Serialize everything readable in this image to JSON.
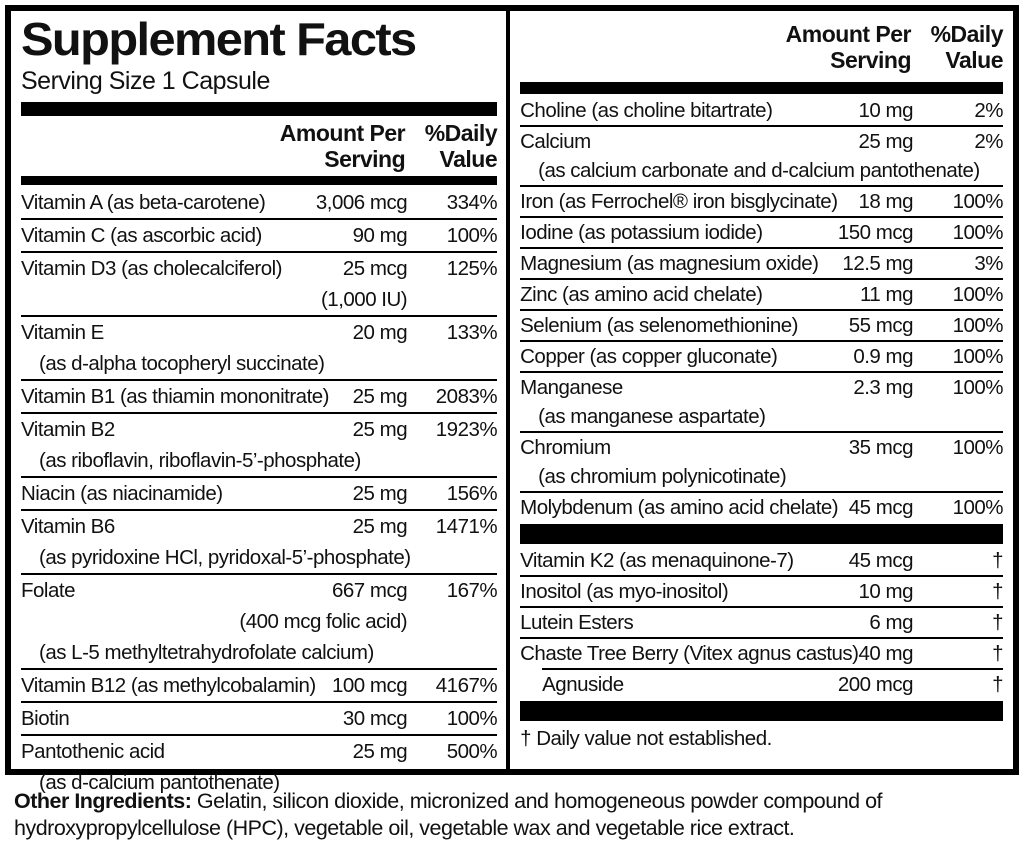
{
  "panel": {
    "title": "Supplement Facts",
    "serving_size": "Serving Size 1 Capsule",
    "column_headers": {
      "amount_line1": "Amount Per",
      "amount_line2": "Serving",
      "dv_line1": "%Daily",
      "dv_line2": "Value"
    },
    "left_rows": [
      {
        "name": "Vitamin A (as beta-carotene)",
        "amount": "3,006 mcg",
        "dv": "334%"
      },
      {
        "name": "Vitamin C (as ascorbic acid)",
        "amount": "90 mg",
        "dv": "100%"
      },
      {
        "name": "Vitamin D3 (as cholecalciferol)",
        "amount": "25 mcg",
        "dv": "125%",
        "subs": [
          {
            "text": "(1,000 IU)",
            "align": "amount"
          }
        ]
      },
      {
        "name": "Vitamin E",
        "amount": "20 mg",
        "dv": "133%",
        "subs": [
          {
            "text": "(as d-alpha tocopheryl succinate)",
            "align": "left"
          }
        ]
      },
      {
        "name": "Vitamin B1 (as thiamin mononitrate)",
        "amount": "25 mg",
        "dv": "2083%"
      },
      {
        "name": "Vitamin B2",
        "amount": "25 mg",
        "dv": "1923%",
        "subs": [
          {
            "text": "(as riboflavin, riboflavin-5’-phosphate)",
            "align": "left"
          }
        ]
      },
      {
        "name": "Niacin (as niacinamide)",
        "amount": "25 mg",
        "dv": "156%"
      },
      {
        "name": "Vitamin B6",
        "amount": "25 mg",
        "dv": "1471%",
        "subs": [
          {
            "text": "(as pyridoxine HCl, pyridoxal-5’-phosphate)",
            "align": "left"
          }
        ]
      },
      {
        "name": "Folate",
        "amount": "667 mcg",
        "dv": "167%",
        "subs": [
          {
            "text": "(400 mcg folic acid)",
            "align": "amount"
          },
          {
            "text": "(as L-5 methyltetrahydrofolate calcium)",
            "align": "left"
          }
        ]
      },
      {
        "name": "Vitamin B12 (as methylcobalamin)",
        "amount": "100 mcg",
        "dv": "4167%"
      },
      {
        "name": "Biotin",
        "amount": "30 mcg",
        "dv": "100%"
      },
      {
        "name": "Pantothenic acid",
        "amount": "25 mg",
        "dv": "500%",
        "subs": [
          {
            "text": "(as d-calcium pantothenate)",
            "align": "left"
          }
        ]
      }
    ],
    "right_sections": [
      {
        "rows": [
          {
            "name": "Choline (as choline bitartrate)",
            "amount": "10 mg",
            "dv": "2%"
          },
          {
            "name": "Calcium",
            "amount": "25 mg",
            "dv": "2%",
            "subs": [
              {
                "text": "(as calcium carbonate and d-calcium pantothenate)",
                "align": "left"
              }
            ]
          },
          {
            "name": "Iron (as Ferrochel® iron bisglycinate)",
            "amount": "18 mg",
            "dv": "100%"
          },
          {
            "name": "Iodine (as potassium iodide)",
            "amount": "150 mcg",
            "dv": "100%"
          },
          {
            "name": "Magnesium (as magnesium oxide)",
            "amount": "12.5 mg",
            "dv": "3%"
          },
          {
            "name": "Zinc (as amino acid chelate)",
            "amount": "11 mg",
            "dv": "100%"
          },
          {
            "name": "Selenium (as selenomethionine)",
            "amount": "55 mcg",
            "dv": "100%"
          },
          {
            "name": "Copper (as copper gluconate)",
            "amount": "0.9 mg",
            "dv": "100%"
          },
          {
            "name": "Manganese",
            "amount": "2.3 mg",
            "dv": "100%",
            "subs": [
              {
                "text": "(as manganese aspartate)",
                "align": "left"
              }
            ]
          },
          {
            "name": "Chromium",
            "amount": "35 mcg",
            "dv": "100%",
            "subs": [
              {
                "text": "(as chromium polynicotinate)",
                "align": "left"
              }
            ]
          },
          {
            "name": "Molybdenum (as amino acid chelate)",
            "amount": "45 mcg",
            "dv": "100%"
          }
        ]
      },
      {
        "rows": [
          {
            "name": "Vitamin K2 (as menaquinone-7)",
            "amount": "45 mcg",
            "dv": "†"
          },
          {
            "name": "Inositol (as myo-inositol)",
            "amount": "10 mg",
            "dv": "†"
          },
          {
            "name": "Lutein Esters",
            "amount": "6 mg",
            "dv": "†"
          },
          {
            "name": "Chaste Tree Berry (Vitex agnus castus)",
            "amount": "40 mg",
            "dv": "†"
          },
          {
            "name": "Agnuside",
            "amount": "200 mcg",
            "dv": "†",
            "indent": true
          }
        ]
      }
    ],
    "footnote": "† Daily value not established."
  },
  "other_ingredients": {
    "label": "Other Ingredients:",
    "text": "Gelatin, silicon dioxide, micronized and homogeneous powder compound of hydroxypropylcellulose (HPC), vegetable oil, vegetable wax and vegetable rice extract."
  }
}
